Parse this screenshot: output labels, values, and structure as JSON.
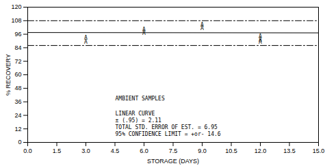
{
  "chart_data": {
    "type": "scatter",
    "x_label": "STORAGE (DAYS)",
    "y_label": "% RECOVERY",
    "xlim": [
      0,
      15
    ],
    "ylim": [
      0,
      120
    ],
    "xticks": [
      {
        "value": 0,
        "label": "0.0"
      },
      1.5,
      {
        "value": 3,
        "label": "3.0"
      },
      4.5,
      {
        "value": 6,
        "label": "6.0"
      },
      7.5,
      {
        "value": 9,
        "label": "9.0"
      },
      10.5,
      {
        "value": 12,
        "label": "12.0"
      },
      13.5,
      {
        "value": 15,
        "label": "15.0"
      }
    ],
    "yticks": [
      0,
      12,
      24,
      36,
      48,
      60,
      72,
      84,
      96,
      108,
      120
    ],
    "grid": false,
    "annotations": [
      "AMBIENT SAMPLES",
      "LINEAR CURVE",
      "± (.95) = 2.11",
      "TOTAL STD. ERROR OF EST. = 6.95",
      "95% CONFIDENCE LIMIT = +or- 14.6"
    ],
    "series": [
      {
        "type": "scatter",
        "marker": "A",
        "color": "#000000",
        "x": [
          3,
          3,
          6,
          6,
          9,
          9,
          12,
          12,
          12
        ],
        "values": [
          93,
          89,
          100,
          97,
          104,
          101,
          94,
          91,
          89
        ]
      },
      {
        "type": "line",
        "line_style": "solid",
        "color": "#000000",
        "x": [
          0,
          15
        ],
        "values": [
          97.5,
          97.2
        ]
      },
      {
        "type": "line",
        "line_style": "dashdot",
        "color": "#000000",
        "x": [
          0,
          15
        ],
        "values": [
          108,
          108
        ]
      },
      {
        "type": "line",
        "line_style": "dashdot",
        "color": "#000000",
        "x": [
          0,
          15
        ],
        "values": [
          86,
          86
        ]
      }
    ]
  }
}
